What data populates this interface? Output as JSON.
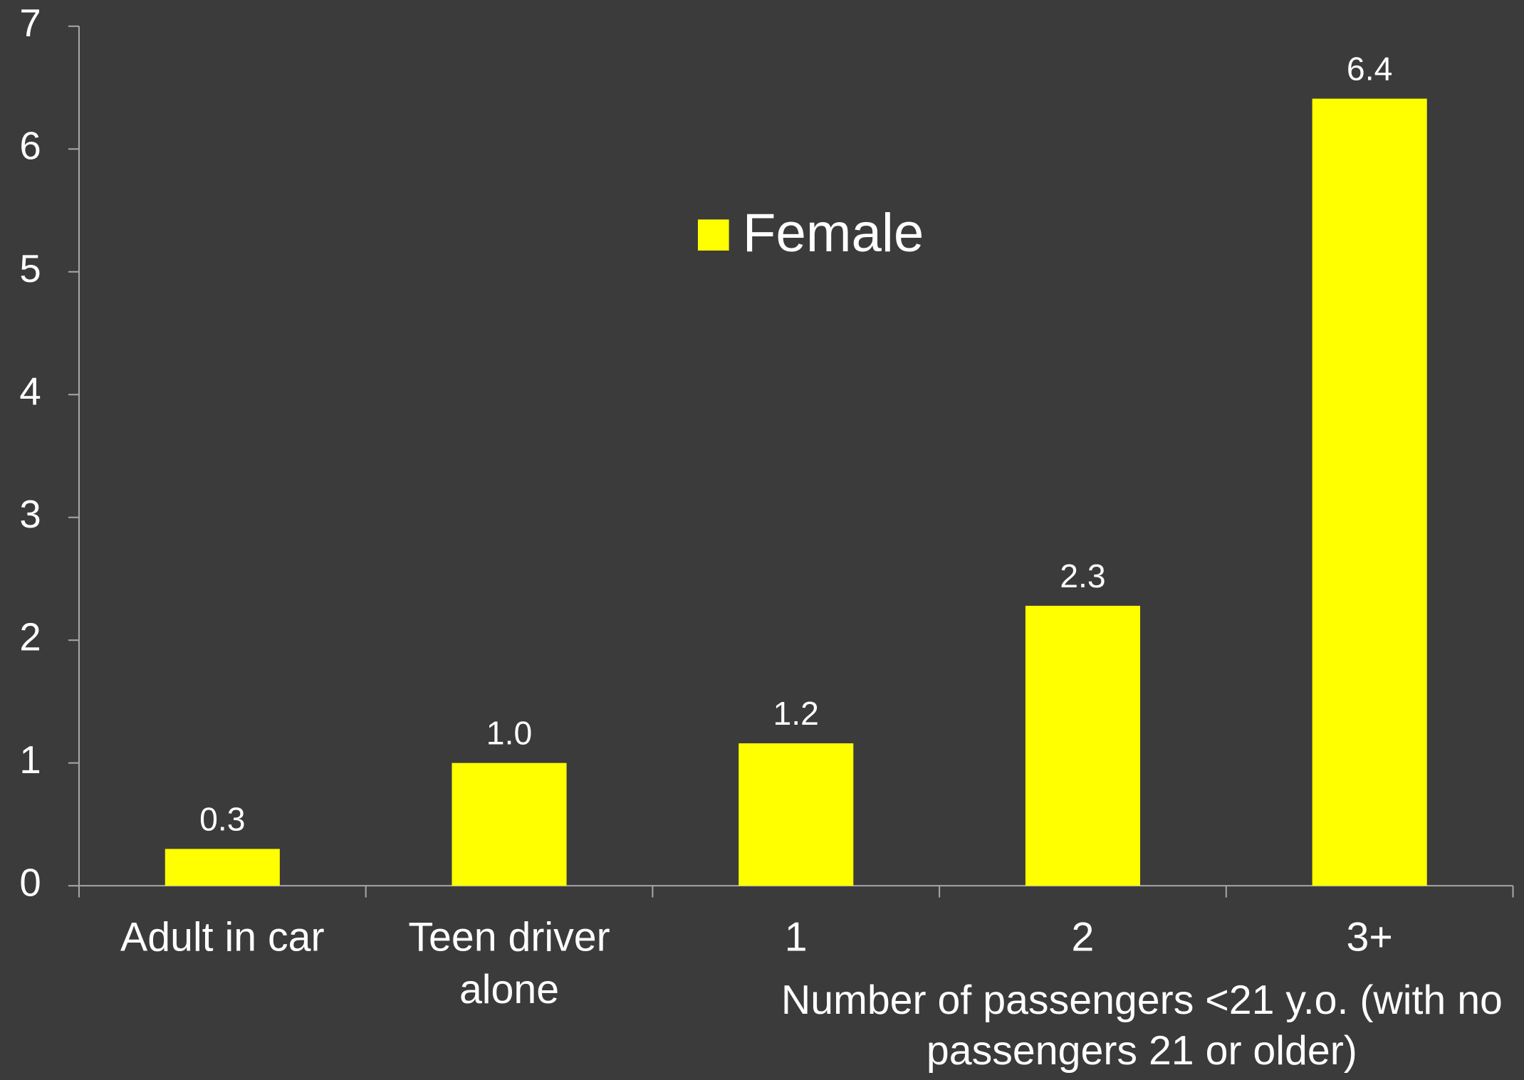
{
  "chart_data": {
    "type": "bar",
    "categories": [
      "Adult in car",
      "Teen driver alone",
      "1",
      "2",
      "3+"
    ],
    "series": [
      {
        "name": "Female",
        "color": "#ffff00",
        "values": [
          0.3,
          1.0,
          1.16,
          2.28,
          6.41
        ],
        "value_labels": [
          "0.3",
          "1.0",
          "1.2",
          "2.3",
          "6.4"
        ]
      }
    ],
    "x_label": "Number of passengers <21 y.o. (with no passengers 21 or older)",
    "ylim": [
      0,
      7
    ],
    "yticks": [
      0,
      1,
      2,
      3,
      4,
      5,
      6,
      7
    ],
    "legend": "top-center"
  }
}
